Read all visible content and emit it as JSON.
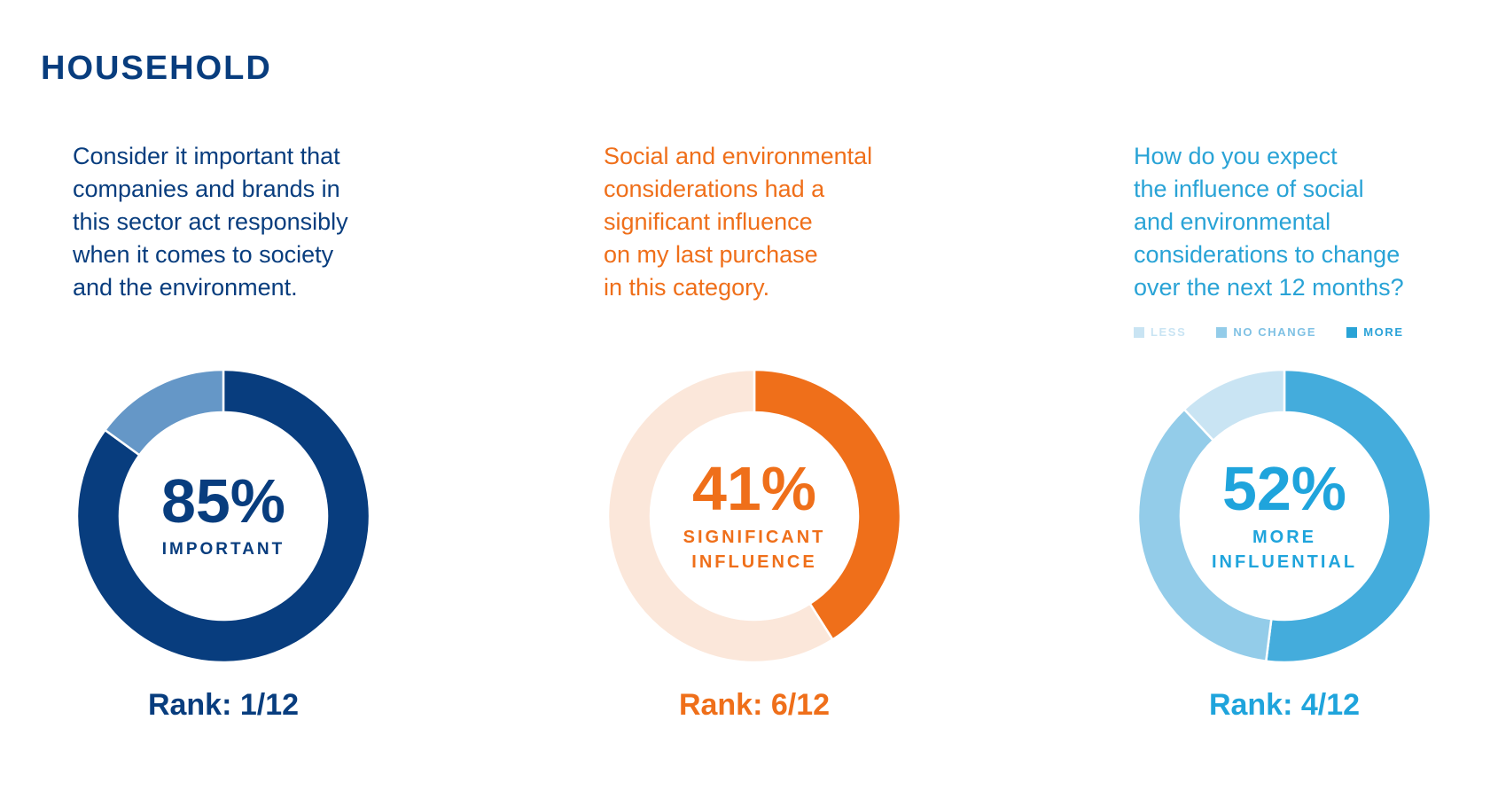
{
  "heading": "HOUSEHOLD",
  "colors": {
    "navy": "#083d7e",
    "navy_light": "#6597c7",
    "orange": "#ef6f1a",
    "orange_light": "#fbe7da",
    "blue": "#44acdc",
    "blue_mid": "#93cce9",
    "blue_light": "#c9e4f3"
  },
  "chart_data": [
    {
      "type": "pie",
      "title": "",
      "question_lines": [
        "Consider it important that",
        "companies and brands in",
        "this sector act responsibly",
        "when it comes to society",
        "and the environment."
      ],
      "center_value": "85%",
      "center_label_lines": [
        "IMPORTANT"
      ],
      "rank": "Rank: 1/12",
      "slices": [
        {
          "label": "Important",
          "value": 85
        },
        {
          "label": "",
          "value": 15
        }
      ]
    },
    {
      "type": "pie",
      "title": "",
      "question_lines": [
        "Social and environmental",
        "considerations had a",
        "significant influence",
        "on my last purchase",
        "in this category."
      ],
      "center_value": "41%",
      "center_label_lines": [
        "SIGNIFICANT",
        "INFLUENCE"
      ],
      "rank": "Rank: 6/12",
      "slices": [
        {
          "label": "Significant influence",
          "value": 41
        },
        {
          "label": "",
          "value": 59
        }
      ]
    },
    {
      "type": "pie",
      "title": "",
      "question_lines": [
        "How do you expect",
        "the influence of social",
        "and environmental",
        "considerations to change",
        "over the next 12 months?"
      ],
      "legend": [
        "LESS",
        "NO CHANGE",
        "MORE"
      ],
      "center_value": "52%",
      "center_label_lines": [
        "MORE",
        "INFLUENTIAL"
      ],
      "rank": "Rank: 4/12",
      "slices": [
        {
          "label": "MORE",
          "value": 52
        },
        {
          "label": "NO CHANGE",
          "value": 36
        },
        {
          "label": "LESS",
          "value": 12
        }
      ]
    }
  ]
}
